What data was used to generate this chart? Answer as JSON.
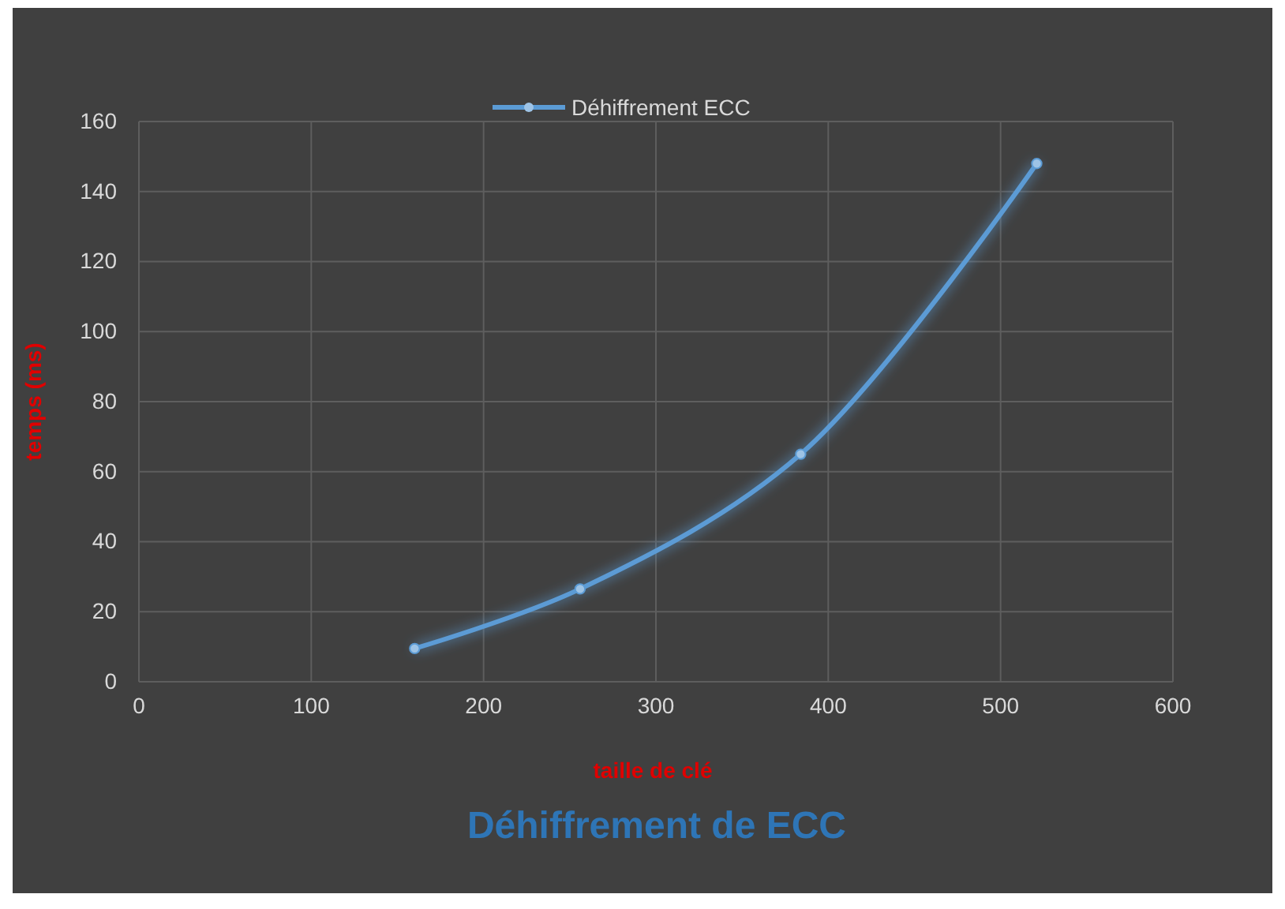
{
  "chart_data": {
    "type": "line",
    "title": "Déhiffrement de ECC",
    "xlabel": "taille de clé",
    "ylabel": "temps (ms)",
    "x": [
      160,
      256,
      384,
      521
    ],
    "series": [
      {
        "name": "Déhiffrement ECC",
        "color": "#5b9bd5",
        "values": [
          9.5,
          26.5,
          65,
          148
        ]
      }
    ],
    "xlim": [
      0,
      600
    ],
    "xticks": [
      0,
      100,
      200,
      300,
      400,
      500,
      600
    ],
    "ylim": [
      0,
      160
    ],
    "yticks": [
      0,
      20,
      40,
      60,
      80,
      100,
      120,
      140,
      160
    ],
    "grid": true,
    "legend": "top",
    "marker": "circle",
    "line_style": "solid"
  }
}
